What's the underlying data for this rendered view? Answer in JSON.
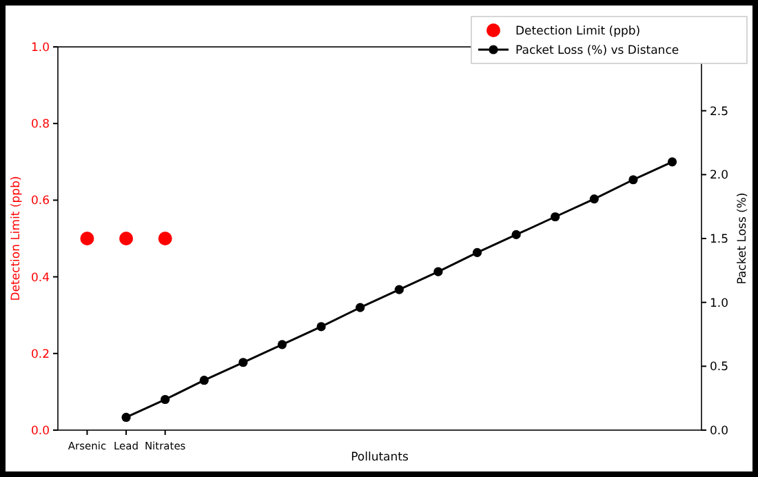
{
  "chart_data": {
    "type": "scatter",
    "xlabel": "Pollutants",
    "ylabel": "Detection Limit (ppb)",
    "y2label": "Packet Loss (%)",
    "categories": [
      "Arsenic",
      "Lead",
      "Nitrates",
      null,
      null,
      null,
      null,
      null,
      null,
      null,
      null,
      null,
      null,
      null,
      null,
      null
    ],
    "ylim": [
      0,
      1
    ],
    "yticks": [
      {
        "value": 0,
        "label": "0.0"
      },
      0.2,
      0.4,
      0.6,
      0.8,
      {
        "value": 1,
        "label": "1.0"
      }
    ],
    "y2lim": [
      0,
      3
    ],
    "y2ticks": [
      {
        "value": 0,
        "label": "0.0"
      },
      0.5,
      {
        "value": 1,
        "label": "1.0"
      },
      1.5,
      {
        "value": 2,
        "label": "2.0"
      },
      2.5
    ],
    "legend": "top right",
    "grid": false,
    "series": [
      {
        "name": "Detection Limit (ppb)",
        "color": "#ff0000",
        "values": [
          0.5,
          0.5,
          0.5,
          null,
          null,
          null,
          null,
          null,
          null,
          null,
          null,
          null,
          null,
          null,
          null,
          null
        ]
      },
      {
        "name": "Packet Loss (%) vs Distance",
        "type": "line",
        "axis": "y2",
        "marker": "circle",
        "line_style": "solid",
        "color": "#000000",
        "values": [
          null,
          0.1,
          0.24,
          0.39,
          0.53,
          0.67,
          0.81,
          0.96,
          1.1,
          1.24,
          1.39,
          1.53,
          1.67,
          1.81,
          1.96,
          2.1
        ]
      }
    ]
  }
}
